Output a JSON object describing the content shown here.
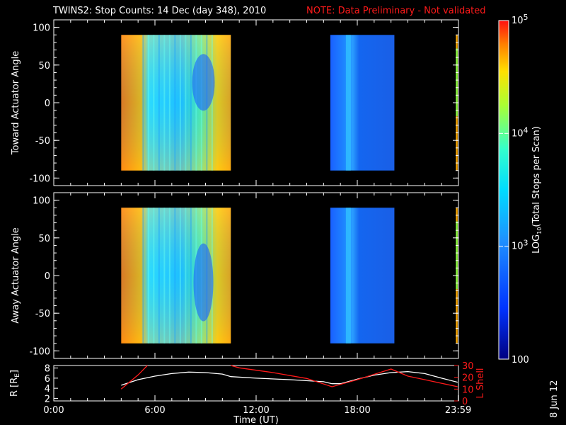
{
  "title": {
    "main": "TWINS2: Stop Counts: 14 Dec (day 348), 2010",
    "note": "NOTE: Data Preliminary - Not validated"
  },
  "datestamp": "8 Jun 12",
  "colors": {
    "note": "#ff1a1a",
    "lshell": "#ff1a1a",
    "radius": "#ffffff"
  },
  "chart_data": [
    {
      "type": "heatmap",
      "ylabel": "Toward Actuator Angle",
      "ylim": [
        -110,
        110
      ],
      "yticks": [
        100,
        50,
        0,
        -50,
        -100
      ],
      "xlim": [
        0,
        24
      ],
      "blocks": [
        {
          "x": [
            4.0,
            10.5
          ],
          "y": [
            -90,
            90
          ],
          "level": "high"
        },
        {
          "x": [
            16.4,
            20.2
          ],
          "y": [
            -90,
            90
          ],
          "level": "low"
        },
        {
          "x": [
            23.85,
            23.95
          ],
          "y": [
            -90,
            90
          ],
          "level": "mixed"
        }
      ]
    },
    {
      "type": "heatmap",
      "ylabel": "Away Actuator Angle",
      "ylim": [
        -110,
        110
      ],
      "yticks": [
        100,
        50,
        0,
        -50,
        -100
      ],
      "xlim": [
        0,
        24
      ],
      "blocks": [
        {
          "x": [
            4.0,
            10.5
          ],
          "y": [
            -90,
            90
          ],
          "level": "high"
        },
        {
          "x": [
            16.4,
            20.2
          ],
          "y": [
            -90,
            90
          ],
          "level": "low"
        },
        {
          "x": [
            23.85,
            23.95
          ],
          "y": [
            -90,
            90
          ],
          "level": "mixed"
        }
      ]
    },
    {
      "type": "line",
      "xlabel": "Time (UT)",
      "xticks": [
        "0:00",
        "6:00",
        "12:00",
        "18:00",
        "23:59"
      ],
      "xtick_hours": [
        0,
        6,
        12,
        18,
        23.983
      ],
      "ylabel_left": "R [R",
      "ylabel_left_sub": "E",
      "ylabel_left_close": "]",
      "yticks_left": [
        "2",
        "4",
        "6",
        "8"
      ],
      "ylim_left": [
        1.5,
        8.5
      ],
      "ylabel_right": "L Shell",
      "yticks_right": [
        "0",
        "10",
        "20",
        "30"
      ],
      "ylim_right": [
        0,
        30
      ],
      "series": [
        {
          "axis": "left",
          "color": "#ffffff",
          "x": [
            4.0,
            5.0,
            6.0,
            7.0,
            8.0,
            9.0,
            10.0,
            10.5,
            12.0,
            14.0,
            16.0,
            16.5,
            17.0,
            18.0,
            19.0,
            20.0,
            21.0,
            22.0,
            23.0,
            23.95
          ],
          "y": [
            4.6,
            5.7,
            6.4,
            6.9,
            7.2,
            7.1,
            6.8,
            6.3,
            6.0,
            5.7,
            5.3,
            4.9,
            4.9,
            5.8,
            6.6,
            7.1,
            7.3,
            6.9,
            6.0,
            5.2
          ]
        },
        {
          "axis": "right",
          "color": "#ff1a1a",
          "x": [
            4.0,
            5.0,
            5.55,
            null,
            10.5,
            11.0,
            13.0,
            15.0,
            16.5,
            18.0,
            20.0,
            21.0,
            22.0,
            23.95
          ],
          "y": [
            10,
            22,
            30,
            null,
            30,
            28,
            24,
            19,
            12,
            18,
            27,
            21,
            18,
            12
          ]
        }
      ]
    }
  ],
  "colorbar": {
    "label": "LOG",
    "label_sub": "10",
    "label_rest": "(Total Stops per Scan)",
    "ticks": [
      {
        "base": "10",
        "exp": "5",
        "value": 100000
      },
      {
        "base": "10",
        "exp": "4",
        "value": 10000
      },
      {
        "base": "10",
        "exp": "3",
        "value": 1000
      },
      {
        "base": "100",
        "exp": "",
        "value": 100
      }
    ]
  }
}
